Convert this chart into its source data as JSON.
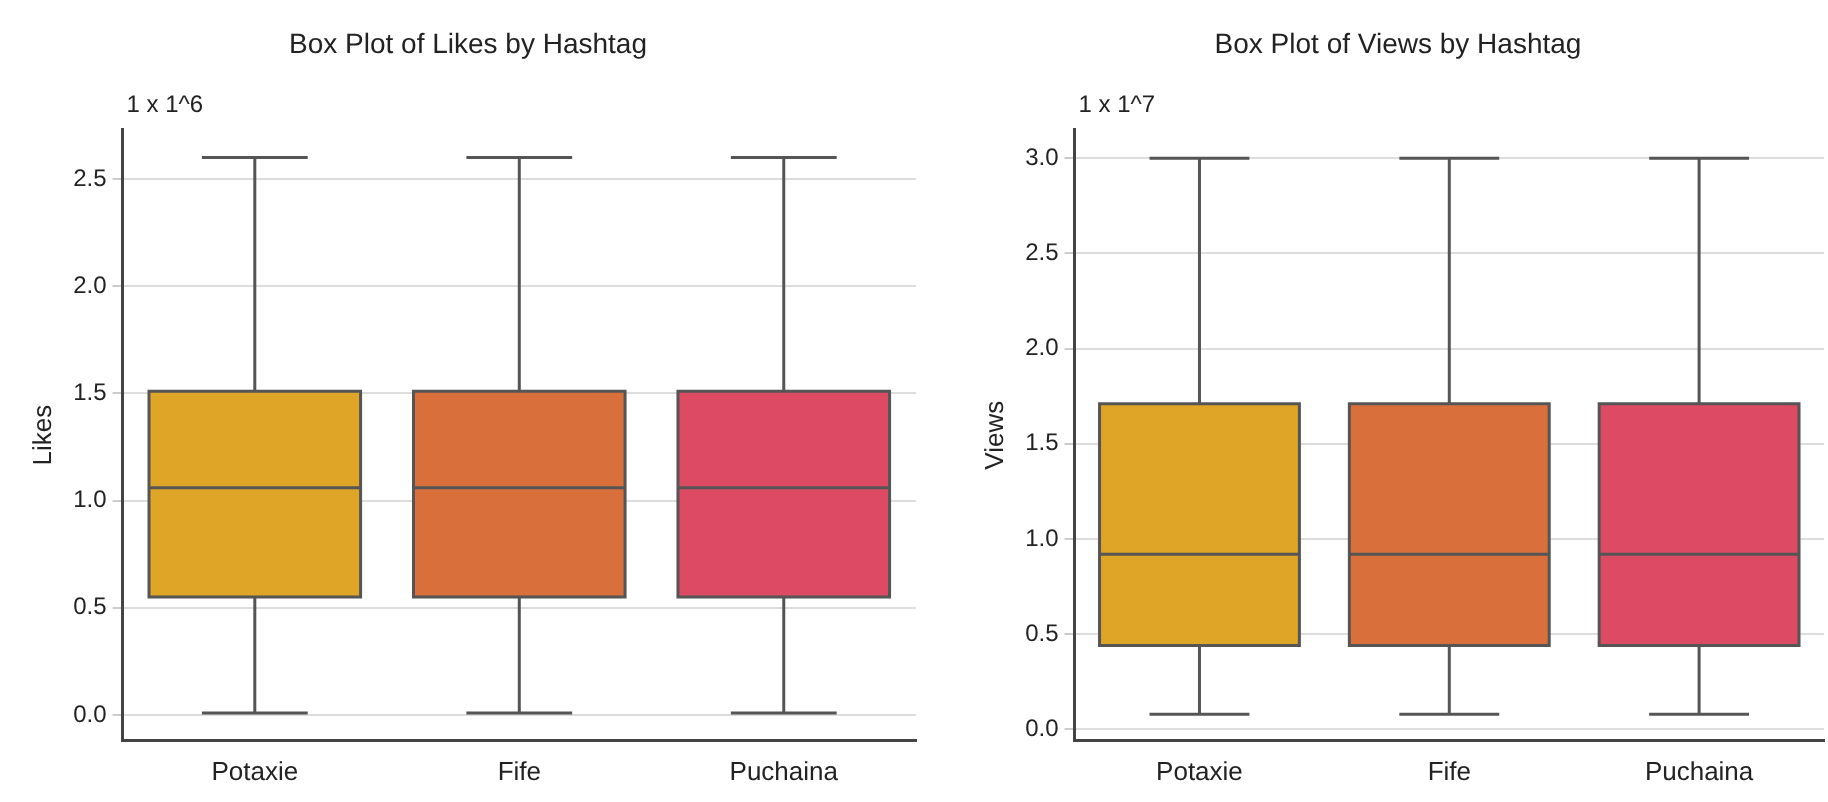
{
  "chart_data": [
    {
      "type": "box",
      "title": "Box Plot of Likes by Hashtag",
      "ylabel": "Likes",
      "categories": [
        "Potaxie",
        "Fife",
        "Puchaina"
      ],
      "boxes": [
        {
          "low": 0.01,
          "q1": 0.55,
          "median": 1.06,
          "q3": 1.51,
          "high": 2.6
        },
        {
          "low": 0.01,
          "q1": 0.55,
          "median": 1.06,
          "q3": 1.51,
          "high": 2.6
        },
        {
          "low": 0.01,
          "q1": 0.55,
          "median": 1.06,
          "q3": 1.51,
          "high": 2.6
        }
      ],
      "colors": [
        "#dfa526",
        "#d9703b",
        "#dc4a64"
      ],
      "ylim": [
        -0.12,
        2.73
      ],
      "yticks": [
        {
          "value": 0,
          "label": "0.0"
        },
        0.5,
        {
          "value": 1,
          "label": "1.0"
        },
        1.5,
        {
          "value": 2,
          "label": "2.0"
        },
        2.5
      ],
      "grid": "y",
      "annotations": [
        "1 x 1^6"
      ]
    },
    {
      "type": "box",
      "title": "Box Plot of Views by Hashtag",
      "ylabel": "Views",
      "categories": [
        "Potaxie",
        "Fife",
        "Puchaina"
      ],
      "boxes": [
        {
          "low": 0.08,
          "q1": 0.44,
          "median": 0.92,
          "q3": 1.71,
          "high": 3.0
        },
        {
          "low": 0.08,
          "q1": 0.44,
          "median": 0.92,
          "q3": 1.71,
          "high": 3.0
        },
        {
          "low": 0.08,
          "q1": 0.44,
          "median": 0.92,
          "q3": 1.71,
          "high": 3.0
        }
      ],
      "colors": [
        "#dfa526",
        "#d9703b",
        "#dc4a64"
      ],
      "ylim": [
        -0.06,
        3.15
      ],
      "yticks": [
        {
          "value": 0,
          "label": "0.0"
        },
        0.5,
        {
          "value": 1,
          "label": "1.0"
        },
        1.5,
        {
          "value": 2,
          "label": "2.0"
        },
        2.5,
        {
          "value": 3,
          "label": "3.0"
        }
      ],
      "grid": "y",
      "annotations": [
        "1 x 1^7"
      ]
    }
  ]
}
